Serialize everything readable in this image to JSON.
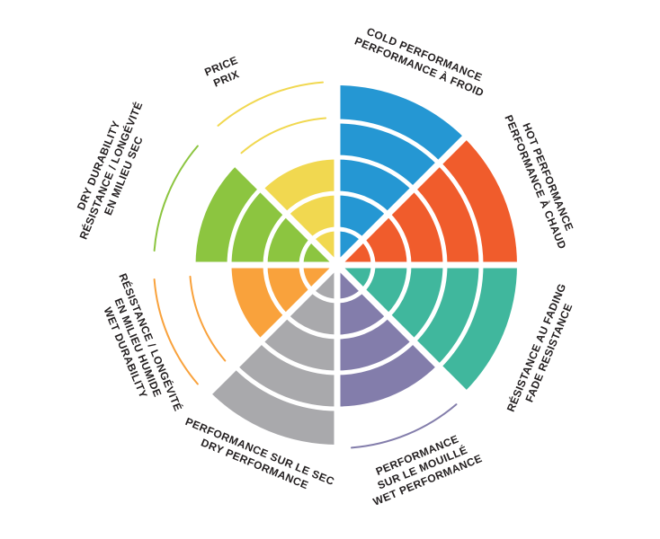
{
  "chart_data": {
    "type": "pie",
    "variant": "coxcomb-performance-wheel",
    "scale_max": 5,
    "ring_unit": 1,
    "grid": "concentric-rings-with-radial-dividers",
    "ring_separator_color": "#ffffff",
    "background_color": "#ffffff",
    "label_text_color": "#231f20",
    "sectors": [
      {
        "id": "cold-performance",
        "lines": [
          "COLD PERFORMANCE",
          "PERFORMANCE À FROID"
        ],
        "color": "#2597d3",
        "value": 5
      },
      {
        "id": "hot-performance",
        "lines": [
          "HOT PERFORMANCE",
          "PERFORMANCE À CHAUD"
        ],
        "color": "#f05c2c",
        "value": 5
      },
      {
        "id": "fade-resistance",
        "lines": [
          "RÉSISTANCE AU FADING",
          "FADE RESISTANCE"
        ],
        "color": "#40b79d",
        "value": 5
      },
      {
        "id": "wet-performance",
        "lines": [
          "PERFORMANCE",
          "SUR LE MOUILLÉ",
          "WET PERFORMANCE"
        ],
        "color": "#837dab",
        "value": 4
      },
      {
        "id": "dry-performance",
        "lines": [
          "PERFORMANCE SUR LE SEC",
          "DRY PERFORMANCE"
        ],
        "color": "#a9a9ac",
        "value": 5
      },
      {
        "id": "wet-durability",
        "lines": [
          "RÉSISTANCE / LONGÉVITÉ",
          "EN MILIEU HUMIDE",
          "WET DURABILITY"
        ],
        "color": "#f9a23c",
        "value": 3
      },
      {
        "id": "dry-durability",
        "lines": [
          "DRY DURABILITY",
          "RÉSISTANCE / LONGÉVITÉ",
          "EN MILIEU SEC"
        ],
        "color": "#8cc540",
        "value": 4
      },
      {
        "id": "price",
        "lines": [
          "PRICE",
          "PRIX"
        ],
        "color": "#f1d850",
        "value": 3
      }
    ]
  }
}
